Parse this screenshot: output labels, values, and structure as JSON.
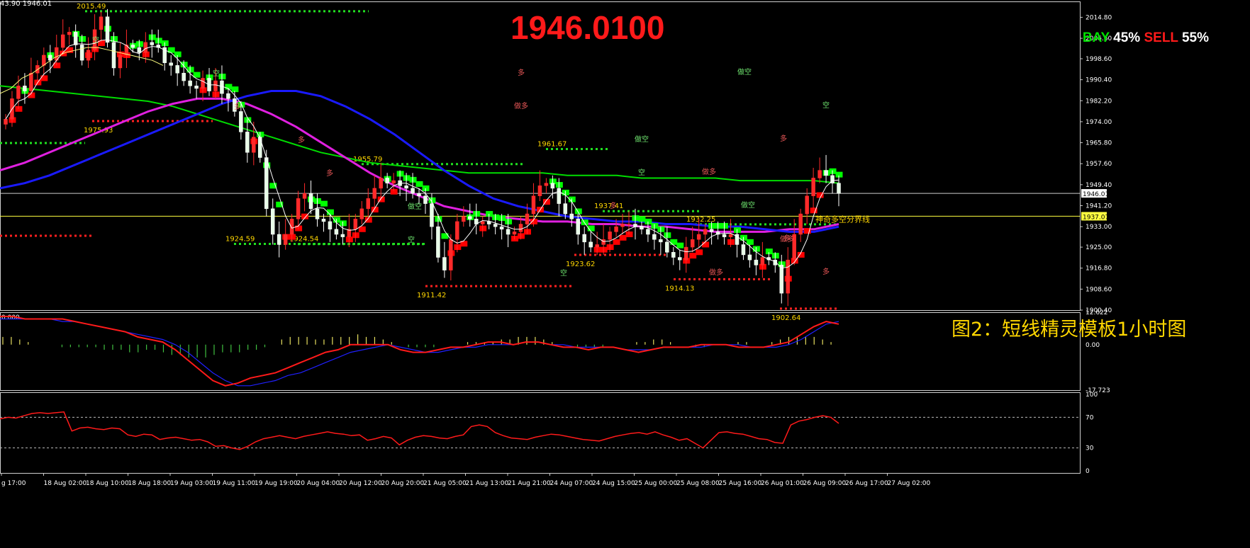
{
  "header": {
    "corner_info": "43.90 1946.01",
    "big_price": "1946.0100",
    "signal": {
      "buy_label": "BAY",
      "buy_pct": "45%",
      "sell_label": "SELL",
      "sell_pct": "55%"
    },
    "caption": "图2：短线精灵模板1小时图"
  },
  "colors": {
    "up": "#ff0000",
    "down": "#00ff00",
    "ma_blue": "#1a1aff",
    "ma_magenta": "#e020e0",
    "ma_green": "#00dd00",
    "label": "#ffd700",
    "grid": "#ffffff"
  },
  "chart_data": [
    {
      "type": "candlestick",
      "ylim": [
        1900.4,
        2021.0
      ],
      "y_ticks": [
        "2014.80",
        "2006.60",
        "1998.60",
        "1990.40",
        "1982.20",
        "1974.00",
        "1965.80",
        "1957.60",
        "1949.40",
        "1941.20",
        "1933.00",
        "1925.00",
        "1916.80",
        "1908.60",
        "1900.40"
      ],
      "current_price": {
        "value": 1946.01,
        "label": "1946.01"
      },
      "boundary_line": {
        "value": 1937.07,
        "label": "1937.07",
        "text": "神奇多空分界线"
      },
      "x_labels": [
        "g 17:00",
        "18 Aug 02:00",
        "18 Aug 10:00",
        "18 Aug 18:00",
        "19 Aug 03:00",
        "19 Aug 11:00",
        "19 Aug 19:00",
        "20 Aug 04:00",
        "20 Aug 12:00",
        "20 Aug 20:00",
        "21 Aug 05:00",
        "21 Aug 13:00",
        "21 Aug 21:00",
        "24 Aug 07:00",
        "24 Aug 15:00",
        "25 Aug 00:00",
        "25 Aug 08:00",
        "25 Aug 16:00",
        "26 Aug 01:00",
        "26 Aug 09:00",
        "26 Aug 17:00",
        "27 Aug 02:00"
      ],
      "closes": [
        1975,
        1983,
        1988,
        1986,
        1993,
        1996,
        2000,
        1998,
        2003,
        2008,
        2009,
        2004,
        1998,
        2002,
        2010,
        2015,
        2005,
        1995,
        2000,
        2004,
        2003,
        2001,
        2005,
        2004,
        2003,
        1997,
        1996,
        1993,
        1990,
        1988,
        1987,
        1991,
        1986,
        1990,
        1985,
        1983,
        1978,
        1970,
        1962,
        1968,
        1960,
        1940,
        1930,
        1926,
        1930,
        1936,
        1944,
        1946,
        1940,
        1936,
        1935,
        1932,
        1930,
        1929,
        1932,
        1936,
        1940,
        1944,
        1948,
        1952,
        1950,
        1951,
        1949,
        1948,
        1946,
        1945,
        1942,
        1933,
        1921,
        1916,
        1928,
        1935,
        1937,
        1936,
        1934,
        1935,
        1934,
        1933,
        1932,
        1930,
        1931,
        1934,
        1938,
        1945,
        1949,
        1950,
        1948,
        1942,
        1938,
        1936,
        1930,
        1927,
        1925,
        1926,
        1928,
        1931,
        1933,
        1934,
        1934,
        1933,
        1932,
        1930,
        1928,
        1927,
        1923,
        1921,
        1920,
        1925,
        1928,
        1930,
        1932,
        1931,
        1930,
        1929,
        1930,
        1926,
        1922,
        1920,
        1918,
        1921,
        1920,
        1918,
        1907,
        1920,
        1930,
        1938,
        1945,
        1952,
        1955,
        1953,
        1950,
        1946
      ],
      "series_bullish": [
        1985,
        1987,
        1991,
        1993,
        1996,
        1999,
        2001,
        2002,
        2003,
        2003,
        2002,
        2001,
        2000,
        1999,
        1998,
        1996
      ],
      "ma_blue": [
        1948,
        1950,
        1953,
        1957,
        1961,
        1965,
        1969,
        1973,
        1977,
        1981,
        1984,
        1986,
        1986,
        1984,
        1980,
        1975,
        1969,
        1962,
        1955,
        1949,
        1944,
        1941,
        1939,
        1937,
        1936,
        1935,
        1935,
        1934,
        1934,
        1933,
        1933,
        1932,
        1931,
        1931,
        1933
      ],
      "ma_magenta": [
        1955,
        1958,
        1962,
        1966,
        1970,
        1974,
        1978,
        1981,
        1983,
        1983,
        1981,
        1977,
        1972,
        1966,
        1960,
        1954,
        1949,
        1945,
        1941,
        1939,
        1937,
        1936,
        1935,
        1935,
        1934,
        1934,
        1933,
        1933,
        1932,
        1931,
        1931,
        1931,
        1932,
        1932,
        1934
      ],
      "ma_green": [
        1988,
        1987,
        1986,
        1985,
        1984,
        1983,
        1982,
        1980,
        1977,
        1974,
        1971,
        1968,
        1965,
        1962,
        1960,
        1958,
        1957,
        1956,
        1955,
        1954,
        1954,
        1954,
        1954,
        1953,
        1953,
        1953,
        1952,
        1952,
        1952,
        1952,
        1951,
        1951,
        1951,
        1951,
        1950
      ],
      "levels": [
        {
          "value": 2015.49,
          "label": "2015.49"
        },
        {
          "value": 1975.93,
          "label": "1975.93"
        },
        {
          "value": 1924.59,
          "label": "1924.59"
        },
        {
          "value": 1924.54,
          "label": "1924.54"
        },
        {
          "value": 1955.79,
          "label": "1955.79"
        },
        {
          "value": 1911.42,
          "label": "1911.42"
        },
        {
          "value": 1961.67,
          "label": "1961.67"
        },
        {
          "value": 1937.41,
          "label": "1937.41"
        },
        {
          "value": 1923.62,
          "label": "1923.62"
        },
        {
          "value": 1932.25,
          "label": "1932.25"
        },
        {
          "value": 1914.13,
          "label": "1914.13"
        },
        {
          "value": 1902.64,
          "label": "1902.64"
        }
      ],
      "annotations": [
        "空",
        "空",
        "多",
        "多",
        "多",
        "做空",
        "空",
        "空",
        "多",
        "做多",
        "做空",
        "空",
        "多",
        "做多",
        "做多",
        "做空",
        "空",
        "多",
        "做多",
        "做空",
        "多",
        "多"
      ]
    },
    {
      "type": "histogram+line",
      "name": "MACD",
      "top_label": "0.000",
      "ylim": [
        -17.723,
        12.622
      ],
      "y_ticks": [
        "12.622",
        "0.00",
        "-17.723"
      ],
      "histogram": [
        3,
        3,
        2,
        1,
        0,
        0,
        0,
        -1,
        -1,
        -1,
        -1,
        -1,
        -2,
        -2,
        -2,
        -3,
        -3,
        -2,
        -2,
        -3,
        -4,
        -4,
        -5,
        -5,
        -5,
        -4,
        -3,
        -3,
        -3,
        -2,
        -2,
        -1,
        0,
        2,
        3,
        3,
        3,
        2,
        2,
        3,
        3,
        3,
        4,
        3,
        3,
        2,
        1,
        0,
        -1,
        -1,
        -1,
        -1,
        0,
        0,
        0,
        1,
        1,
        1,
        1,
        2,
        2,
        3,
        3,
        3,
        2,
        1,
        0,
        0,
        -1,
        -1,
        -1,
        -1,
        0,
        0,
        0,
        1,
        1,
        2,
        2,
        1,
        0,
        0,
        -1,
        -1,
        0,
        0,
        0,
        1,
        1,
        0,
        0,
        1,
        2,
        3,
        3,
        3,
        3,
        2,
        1,
        0
      ],
      "signal_line": [
        10,
        10,
        10,
        10,
        10,
        9,
        9,
        8,
        7,
        6,
        5,
        4,
        3,
        2,
        0,
        -3,
        -7,
        -11,
        -14,
        -16,
        -16,
        -15,
        -14,
        -12,
        -11,
        -9,
        -7,
        -5,
        -3,
        -2,
        -1,
        0,
        -1,
        -2,
        -3,
        -3,
        -2,
        -1,
        -1,
        0,
        0,
        0,
        1,
        1,
        0,
        0,
        -1,
        -1,
        -1,
        -1,
        -2,
        -2,
        -2,
        -1,
        -1,
        -1,
        -1,
        0,
        0,
        0,
        -1,
        -1,
        -1,
        0,
        2,
        5,
        8,
        9
      ],
      "macd_line": [
        11,
        11,
        10,
        10,
        10,
        10,
        9,
        8,
        7,
        6,
        5,
        3,
        2,
        1,
        -2,
        -6,
        -10,
        -14,
        -16,
        -15,
        -13,
        -12,
        -11,
        -9,
        -7,
        -5,
        -3,
        -2,
        0,
        0,
        0,
        0,
        -2,
        -3,
        -3,
        -2,
        -1,
        -1,
        0,
        1,
        1,
        0,
        1,
        1,
        0,
        -1,
        -1,
        -2,
        -1,
        -1,
        -2,
        -3,
        -2,
        -1,
        -1,
        -1,
        0,
        0,
        0,
        -1,
        -1,
        -1,
        0,
        1,
        4,
        7,
        9,
        8
      ]
    },
    {
      "type": "line",
      "name": "RSI",
      "ylim": [
        0,
        100
      ],
      "y_ticks": [
        "100",
        "70",
        "30",
        "0"
      ],
      "levels": [
        70,
        30
      ],
      "values": [
        68,
        70,
        69,
        72,
        75,
        76,
        75,
        76,
        77,
        52,
        56,
        57,
        55,
        54,
        56,
        55,
        47,
        45,
        48,
        47,
        41,
        43,
        44,
        42,
        40,
        41,
        38,
        32,
        33,
        30,
        28,
        32,
        38,
        42,
        44,
        46,
        44,
        42,
        45,
        47,
        49,
        51,
        49,
        48,
        46,
        47,
        40,
        42,
        45,
        43,
        34,
        40,
        44,
        46,
        45,
        43,
        42,
        45,
        47,
        58,
        60,
        58,
        50,
        46,
        43,
        42,
        41,
        44,
        46,
        48,
        47,
        45,
        43,
        41,
        40,
        39,
        42,
        45,
        47,
        49,
        50,
        48,
        51,
        47,
        44,
        40,
        42,
        36,
        30,
        40,
        50,
        51,
        49,
        48,
        45,
        42,
        41,
        37,
        36,
        60,
        65,
        67,
        70,
        72,
        70,
        62
      ]
    }
  ]
}
